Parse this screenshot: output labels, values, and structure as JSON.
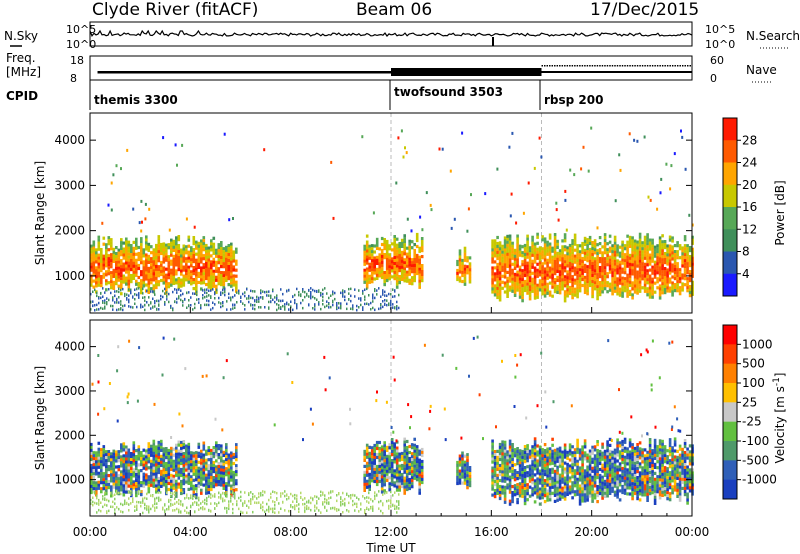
{
  "header": {
    "station": "Clyde River (fitACF)",
    "beam": "Beam 06",
    "date": "17/Dec/2015"
  },
  "top_panels": {
    "nsky_label": "N.Sky",
    "nsky_ticks": [
      "10^5",
      "10^0"
    ],
    "nsearch_label": "N.Search",
    "freq_label_1": "Freq.",
    "freq_label_2": "[MHz]",
    "freq_ticks": [
      "18",
      "8"
    ],
    "nave_label": "Nave",
    "nave_ticks": [
      "60",
      "0"
    ],
    "cpid_label": "CPID",
    "cpid_segments": [
      {
        "name": "themis 3300",
        "start_hour": 0,
        "end_hour": 12
      },
      {
        "name": "twofsound 3503",
        "start_hour": 12,
        "end_hour": 18
      },
      {
        "name": "rbsp 200",
        "start_hour": 18,
        "end_hour": 24
      }
    ]
  },
  "colors": {
    "power_scale": [
      "#1a1aff",
      "#2a57b0",
      "#3f8f5a",
      "#57a857",
      "#c8c800",
      "#ffa500",
      "#ff5a00",
      "#ff1a00"
    ],
    "velocity_scale": [
      "#1a3fbf",
      "#2f5fb8",
      "#4f9a6a",
      "#62c040",
      "#c8c8c8",
      "#ffc000",
      "#ff8000",
      "#ff4000",
      "#ff0000"
    ]
  },
  "chart_data": [
    {
      "type": "heatmap",
      "xlabel": "",
      "ylabel": "Slant Range [km]",
      "xlim_hours": [
        0,
        24
      ],
      "ylim": [
        180,
        4600
      ],
      "yticks": [
        1000,
        2000,
        3000,
        4000
      ],
      "colorbar": {
        "label": "Power [dB]",
        "ticks": [
          "28",
          "24",
          "20",
          "16",
          "12",
          "8",
          "4"
        ],
        "range": [
          0,
          30
        ]
      },
      "scatter_regions": [
        {
          "t0": 0.0,
          "t1": 5.8,
          "r0": 750,
          "r1": 1750,
          "intensity": 0.75
        },
        {
          "t0": 10.9,
          "t1": 13.2,
          "r0": 850,
          "r1": 1800,
          "intensity": 0.85
        },
        {
          "t0": 14.6,
          "t1": 15.1,
          "r0": 950,
          "r1": 1500,
          "intensity": 0.6
        },
        {
          "t0": 16.0,
          "t1": 24.0,
          "r0": 600,
          "r1": 1800,
          "intensity": 0.8
        }
      ]
    },
    {
      "type": "heatmap",
      "xlabel": "Time UT",
      "ylabel": "Slant Range [km]",
      "xlim_hours": [
        0,
        24
      ],
      "ylim": [
        180,
        4600
      ],
      "xticks": [
        "00:00",
        "04:00",
        "08:00",
        "12:00",
        "16:00",
        "20:00",
        "00:00"
      ],
      "yticks": [
        1000,
        2000,
        3000,
        4000
      ],
      "colorbar": {
        "label": "Velocity [m s^-1]",
        "ticks": [
          "1000",
          "500",
          "100",
          "25",
          "-25",
          "-100",
          "-500",
          "-1000"
        ],
        "range": [
          -1000,
          1000
        ]
      },
      "scatter_regions": [
        {
          "t0": 0.0,
          "t1": 5.8,
          "r0": 750,
          "r1": 1750
        },
        {
          "t0": 10.9,
          "t1": 13.2,
          "r0": 850,
          "r1": 1800
        },
        {
          "t0": 14.6,
          "t1": 15.1,
          "r0": 950,
          "r1": 1500
        },
        {
          "t0": 16.0,
          "t1": 24.0,
          "r0": 600,
          "r1": 1800
        }
      ]
    }
  ]
}
